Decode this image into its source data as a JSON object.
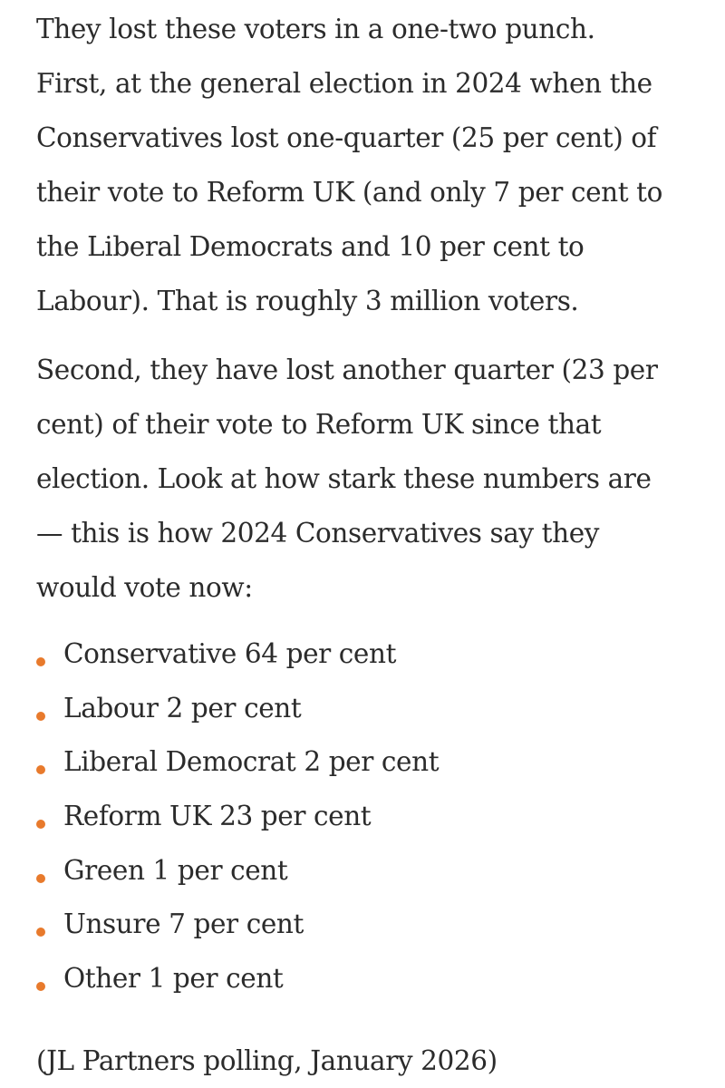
{
  "paragraphs": [
    {
      "lines": [
        "They lost these voters in a one-two punch.",
        "First, at the general election in 2024 when the",
        "Conservatives lost one-quarter (25 per cent) of",
        "their vote to Reform UK (and only 7 per cent to",
        "the Liberal Democrats and 10 per cent to",
        "Labour). That is roughly 3 million voters."
      ]
    },
    {
      "lines": [
        "Second, they have lost another quarter (23 per",
        "cent) of their vote to Reform UK since that",
        "election. Look at how stark these numbers are",
        "— this is how 2024 Conservatives say they",
        "would vote now:"
      ]
    }
  ],
  "bullets": [
    "Conservative 64 per cent",
    "Labour 2 per cent",
    "Liberal Democrat 2 per cent",
    "Reform UK 23 per cent",
    "Green 1 per cent",
    "Unsure 7 per cent",
    "Other 1 per cent"
  ],
  "source": "(JL Partners polling, January 2026)",
  "colors": {
    "text": "#2b2b2b",
    "bullet_accent": "#e87a2c"
  }
}
